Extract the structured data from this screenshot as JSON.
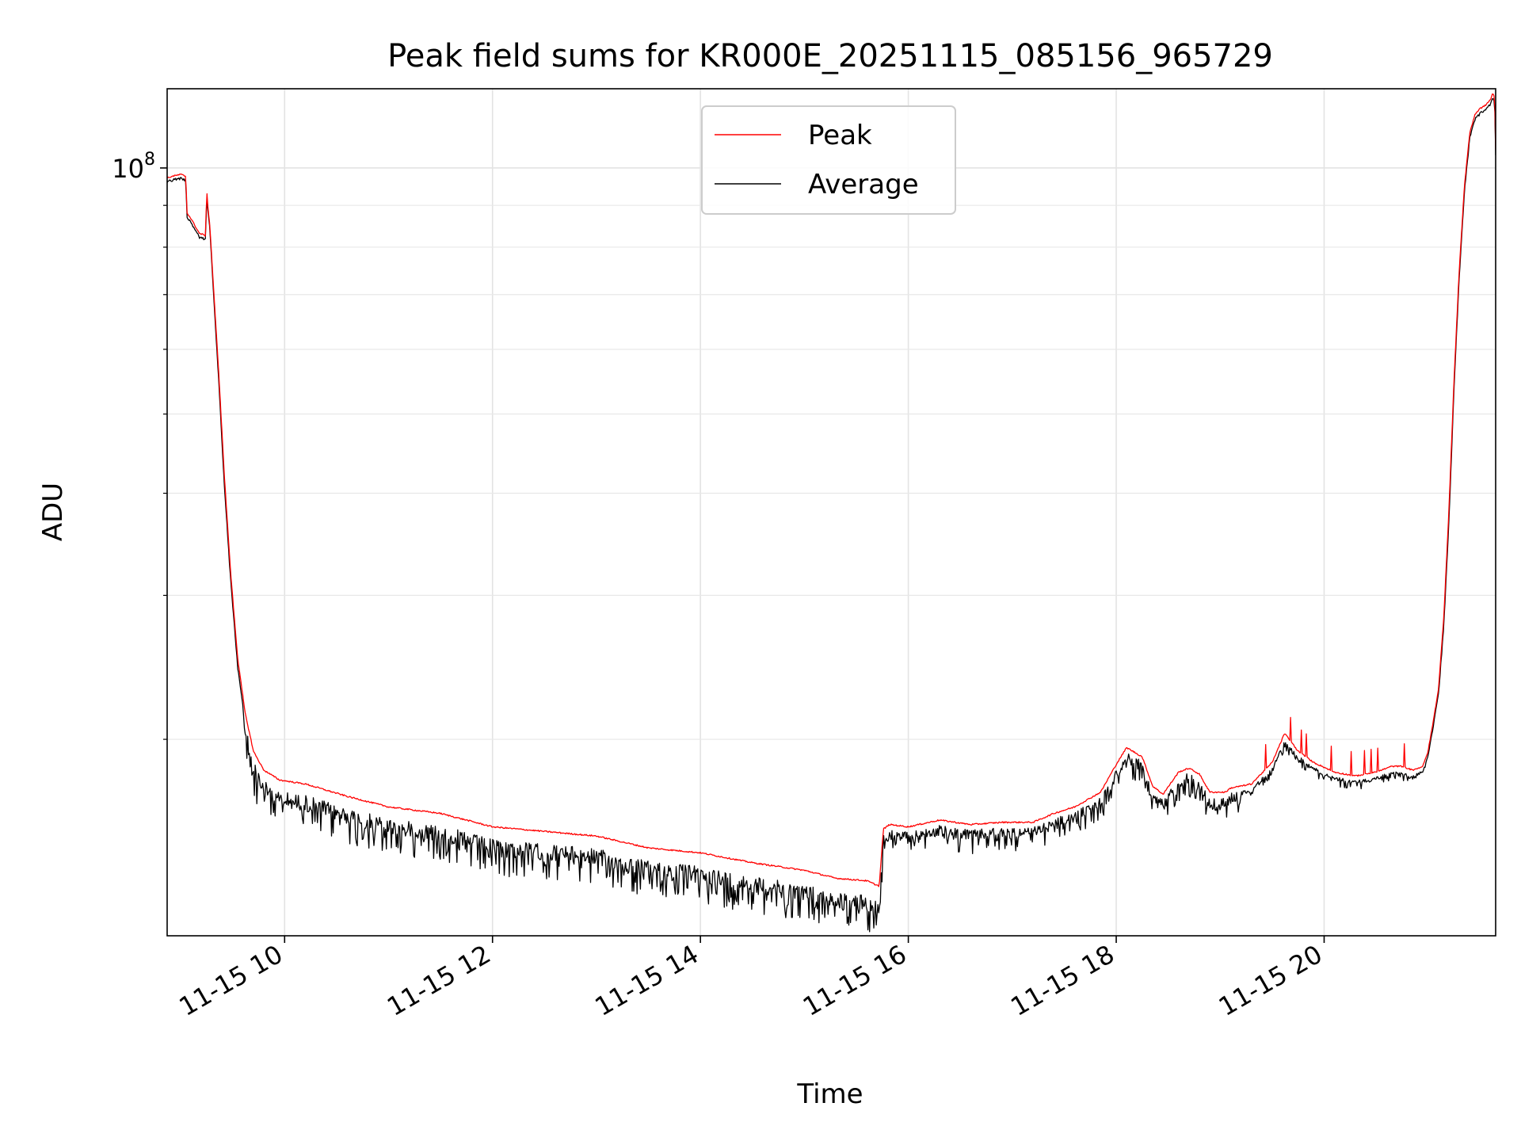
{
  "chart_data": {
    "type": "line",
    "title": "Peak field sums for KR000E_20251115_085156_965729",
    "xlabel": "Time",
    "ylabel": "ADU",
    "yscale": "log",
    "xlim_hours": [
      8.87,
      21.65
    ],
    "ylim": [
      11500000,
      125000000
    ],
    "grid": true,
    "legend_position": "upper-center",
    "x_ticks": [
      {
        "value": 10,
        "label": "11-15 10"
      },
      {
        "value": 12,
        "label": "11-15 12"
      },
      {
        "value": 14,
        "label": "11-15 14"
      },
      {
        "value": 16,
        "label": "11-15 16"
      },
      {
        "value": 18,
        "label": "11-15 18"
      },
      {
        "value": 20,
        "label": "11-15 20"
      }
    ],
    "y_major_tick": {
      "value": 100000000,
      "base": "10",
      "exponent": "8"
    },
    "y_minor_ticks": [
      20000000,
      30000000,
      40000000,
      50000000,
      60000000,
      70000000,
      80000000,
      90000000
    ],
    "series": [
      {
        "name": "Peak",
        "color": "#ff0000",
        "x": [
          8.87,
          8.92,
          9.0,
          9.05,
          9.06,
          9.1,
          9.18,
          9.24,
          9.25,
          9.26,
          9.28,
          9.32,
          9.37,
          9.42,
          9.48,
          9.55,
          9.62,
          9.7,
          9.8,
          9.95,
          10.2,
          10.6,
          11.0,
          11.5,
          12.0,
          12.5,
          13.0,
          13.5,
          14.0,
          14.5,
          15.0,
          15.3,
          15.6,
          15.72,
          15.76,
          15.82,
          16.0,
          16.3,
          16.6,
          16.9,
          17.2,
          17.4,
          17.6,
          17.85,
          18.0,
          18.1,
          18.25,
          18.35,
          18.45,
          18.6,
          18.7,
          18.8,
          18.9,
          19.05,
          19.1,
          19.3,
          19.5,
          19.62,
          19.75,
          19.9,
          20.1,
          20.3,
          20.5,
          20.65,
          20.75,
          20.85,
          20.95,
          21.0,
          21.05,
          21.1,
          21.15,
          21.2,
          21.25,
          21.3,
          21.35,
          21.4,
          21.45,
          21.5,
          21.55,
          21.6,
          21.62,
          21.64,
          21.65
        ],
        "values": [
          97000000,
          97500000,
          98000000,
          97500000,
          88000000,
          86500000,
          83000000,
          82500000,
          94000000,
          90000000,
          85000000,
          70000000,
          55000000,
          42000000,
          32000000,
          25000000,
          21500000,
          19300000,
          18300000,
          17800000,
          17600000,
          17000000,
          16500000,
          16200000,
          15600000,
          15400000,
          15200000,
          14700000,
          14500000,
          14100000,
          13800000,
          13500000,
          13400000,
          13200000,
          15500000,
          15700000,
          15600000,
          15900000,
          15700000,
          15800000,
          15800000,
          16200000,
          16500000,
          17200000,
          18600000,
          19500000,
          19000000,
          17500000,
          17100000,
          18200000,
          18400000,
          18100000,
          17200000,
          17200000,
          17400000,
          17600000,
          18700000,
          20300000,
          19300000,
          18700000,
          18200000,
          18000000,
          18200000,
          18500000,
          18500000,
          18300000,
          18500000,
          19300000,
          21000000,
          23000000,
          28000000,
          38000000,
          55000000,
          75000000,
          95000000,
          110000000,
          116000000,
          118000000,
          119000000,
          121000000,
          123000000,
          122000000,
          105000000
        ]
      },
      {
        "name": "Average",
        "color": "#000000",
        "x": [
          8.87,
          8.92,
          9.0,
          9.05,
          9.06,
          9.1,
          9.18,
          9.24,
          9.25,
          9.26,
          9.28,
          9.32,
          9.37,
          9.42,
          9.48,
          9.55,
          9.62,
          9.7,
          9.8,
          9.95,
          10.2,
          10.6,
          11.0,
          11.5,
          12.0,
          12.5,
          13.0,
          13.5,
          14.0,
          14.5,
          15.0,
          15.3,
          15.6,
          15.72,
          15.76,
          15.82,
          16.0,
          16.3,
          16.6,
          16.9,
          17.2,
          17.4,
          17.6,
          17.85,
          18.0,
          18.1,
          18.25,
          18.35,
          18.45,
          18.6,
          18.7,
          18.8,
          18.9,
          19.05,
          19.1,
          19.3,
          19.5,
          19.62,
          19.75,
          19.9,
          20.1,
          20.3,
          20.5,
          20.65,
          20.75,
          20.85,
          20.95,
          21.0,
          21.05,
          21.1,
          21.15,
          21.2,
          21.25,
          21.3,
          21.35,
          21.4,
          21.45,
          21.5,
          21.55,
          21.6,
          21.62,
          21.64,
          21.65
        ],
        "values": [
          96500000,
          97000000,
          97500000,
          97000000,
          87500000,
          86000000,
          82500000,
          82000000,
          93000000,
          89500000,
          84500000,
          69000000,
          54000000,
          41000000,
          31500000,
          24500000,
          21000000,
          18800000,
          17800000,
          17300000,
          17100000,
          16500000,
          16000000,
          15700000,
          15100000,
          14900000,
          14700000,
          14200000,
          14000000,
          13600000,
          13300000,
          13000000,
          12900000,
          12700000,
          15300000,
          15500000,
          15400000,
          15700000,
          15500000,
          15600000,
          15600000,
          16000000,
          16300000,
          17000000,
          18400000,
          19300000,
          18800000,
          17200000,
          16900000,
          18000000,
          18200000,
          17900000,
          16900000,
          17000000,
          17200000,
          17400000,
          18500000,
          19900000,
          19100000,
          18500000,
          18000000,
          17800000,
          18000000,
          18300000,
          18300000,
          18100000,
          18300000,
          19100000,
          20800000,
          22800000,
          27500000,
          37000000,
          54000000,
          74000000,
          94000000,
          109000000,
          115000000,
          117000000,
          118000000,
          120000000,
          122000000,
          121000000,
          104000000
        ]
      }
    ]
  }
}
